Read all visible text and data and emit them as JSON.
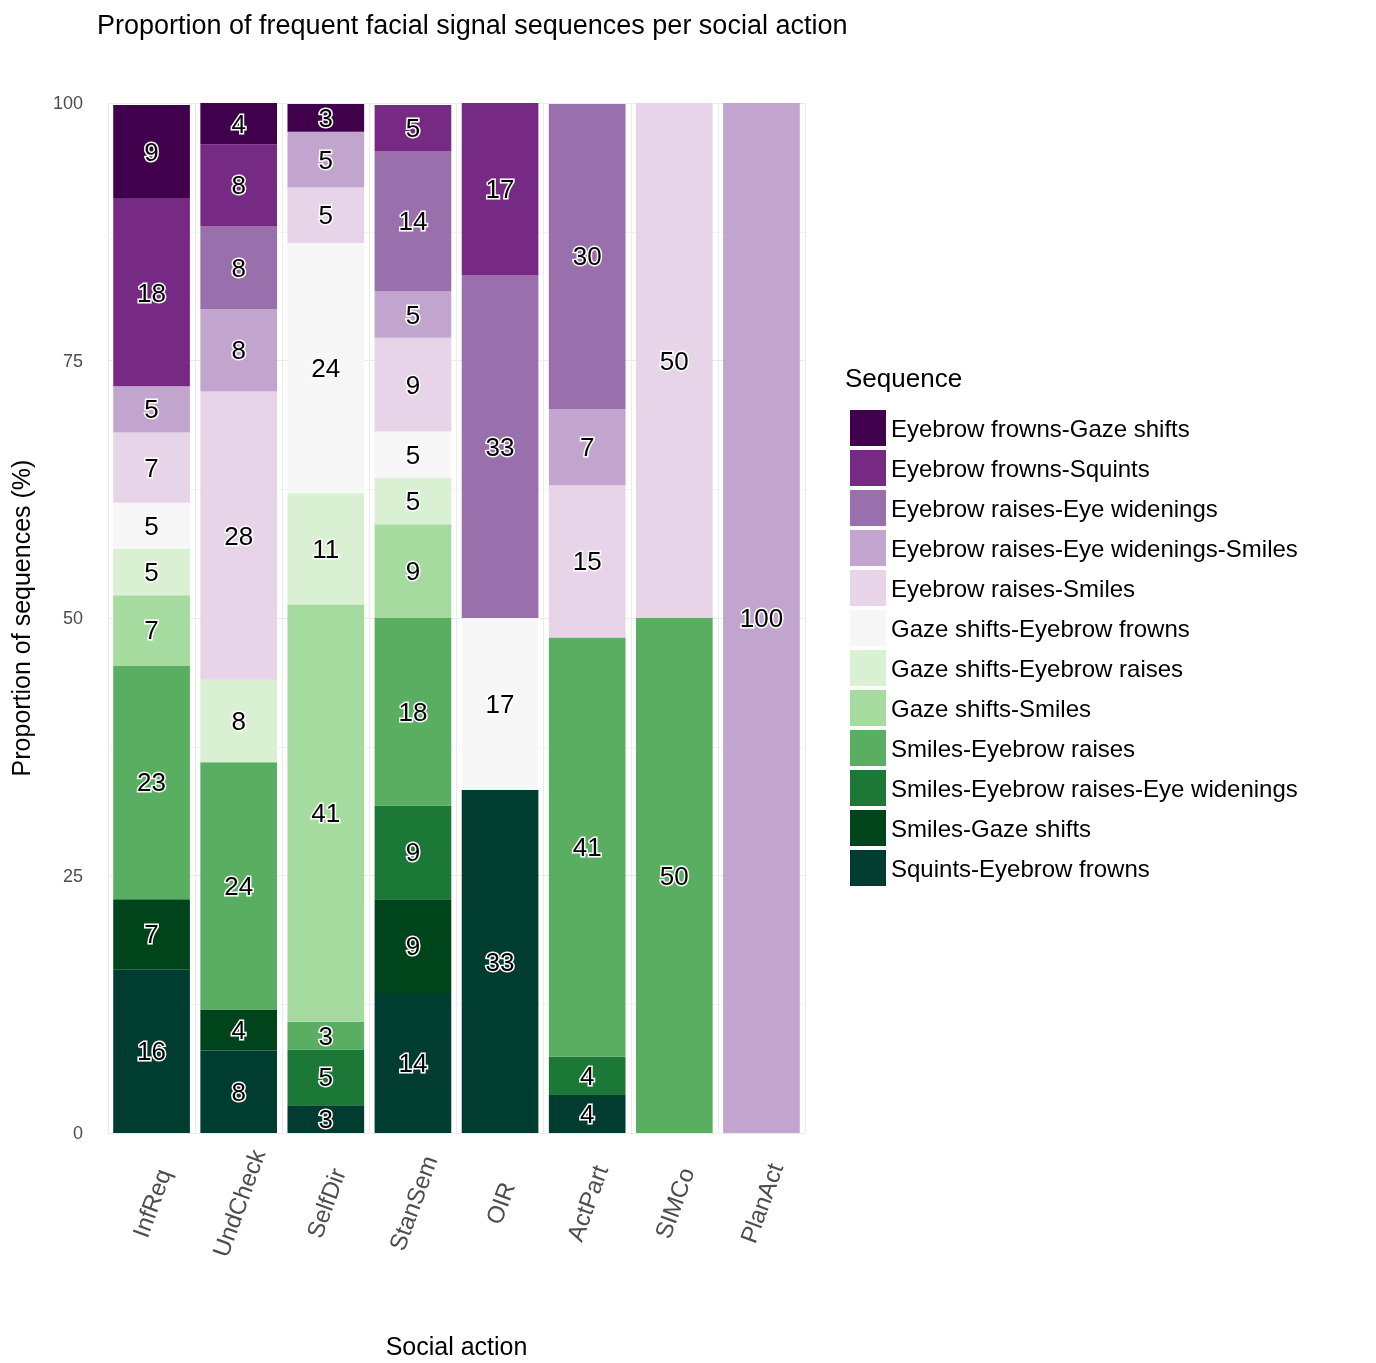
{
  "chart_data": {
    "type": "bar",
    "title": "Proportion of frequent facial signal sequences per social action",
    "xlabel": "Social action",
    "ylabel": "Proportion of sequences (%)",
    "legend_title": "Sequence",
    "categories": [
      "InfReq",
      "UndCheck",
      "SelfDir",
      "StanSem",
      "OIR",
      "ActPart",
      "SIMCo",
      "PlanAct"
    ],
    "stacked": true,
    "ylim": [
      0,
      100
    ],
    "yticks": [
      0,
      25,
      50,
      75,
      100
    ],
    "grid": true,
    "legend": "right",
    "series": [
      {
        "name": "Squints-Eyebrow frowns",
        "color": "#003c30",
        "values": [
          15.9,
          8,
          2.7,
          13.6,
          33.3,
          3.7,
          null,
          null
        ],
        "value_labels": [
          "16",
          "8",
          "3",
          "14",
          "33",
          "4",
          null,
          null
        ]
      },
      {
        "name": "Smiles-Gaze shifts",
        "color": "#00441b",
        "values": [
          6.8,
          4,
          null,
          9.1,
          null,
          null,
          null,
          null
        ],
        "value_labels": [
          "7",
          "4",
          null,
          "9",
          null,
          null,
          null,
          null
        ]
      },
      {
        "name": "Smiles-Eyebrow raises-Eye widenings",
        "color": "#1b7837",
        "values": [
          null,
          null,
          5.4,
          9.1,
          null,
          3.7,
          null,
          null
        ],
        "value_labels": [
          null,
          null,
          "5",
          "9",
          null,
          "4",
          null,
          null
        ]
      },
      {
        "name": "Smiles-Eyebrow raises",
        "color": "#5aae61",
        "values": [
          22.7,
          24,
          2.7,
          18.2,
          null,
          40.7,
          50,
          null
        ],
        "value_labels": [
          "23",
          "24",
          "3",
          "18",
          null,
          "41",
          "50",
          null
        ]
      },
      {
        "name": "Gaze shifts-Smiles",
        "color": "#a6dba0",
        "values": [
          6.8,
          null,
          40.5,
          9.1,
          null,
          null,
          null,
          null
        ],
        "value_labels": [
          "7",
          null,
          "41",
          "9",
          null,
          null,
          null,
          null
        ]
      },
      {
        "name": "Gaze shifts-Eyebrow raises",
        "color": "#d9f0d3",
        "values": [
          4.5,
          8,
          10.8,
          4.5,
          null,
          null,
          null,
          null
        ],
        "value_labels": [
          "5",
          "8",
          "11",
          "5",
          null,
          null,
          null,
          null
        ]
      },
      {
        "name": "Gaze shifts-Eyebrow frowns",
        "color": "#f7f7f7",
        "values": [
          4.5,
          null,
          24.3,
          4.5,
          16.7,
          null,
          null,
          null
        ],
        "value_labels": [
          "5",
          null,
          "24",
          "5",
          "17",
          null,
          null,
          null
        ]
      },
      {
        "name": "Eyebrow raises-Smiles",
        "color": "#e7d4e8",
        "values": [
          6.8,
          28,
          5.4,
          9.1,
          null,
          14.8,
          50,
          null
        ],
        "value_labels": [
          "7",
          "28",
          "5",
          "9",
          null,
          "15",
          "50",
          null
        ]
      },
      {
        "name": "Eyebrow raises-Eye widenings-Smiles",
        "color": "#c2a5cf",
        "values": [
          4.5,
          8,
          5.4,
          4.5,
          null,
          7.4,
          null,
          100
        ],
        "value_labels": [
          "5",
          "8",
          "5",
          "5",
          null,
          "7",
          null,
          "100"
        ]
      },
      {
        "name": "Eyebrow raises-Eye widenings",
        "color": "#9970ab",
        "values": [
          null,
          8,
          null,
          13.6,
          33.3,
          29.6,
          null,
          null
        ],
        "value_labels": [
          null,
          "8",
          null,
          "14",
          "33",
          "30",
          null,
          null
        ]
      },
      {
        "name": "Eyebrow frowns-Squints",
        "color": "#762a83",
        "values": [
          18.2,
          8,
          null,
          4.5,
          16.7,
          null,
          null,
          null
        ],
        "value_labels": [
          "18",
          "8",
          null,
          "5",
          "17",
          null,
          null,
          null
        ]
      },
      {
        "name": "Eyebrow frowns-Gaze shifts",
        "color": "#40004b",
        "values": [
          9.1,
          4,
          2.7,
          null,
          null,
          null,
          null,
          null
        ],
        "value_labels": [
          "9",
          "4",
          "3",
          null,
          null,
          null,
          null,
          null
        ]
      }
    ]
  }
}
